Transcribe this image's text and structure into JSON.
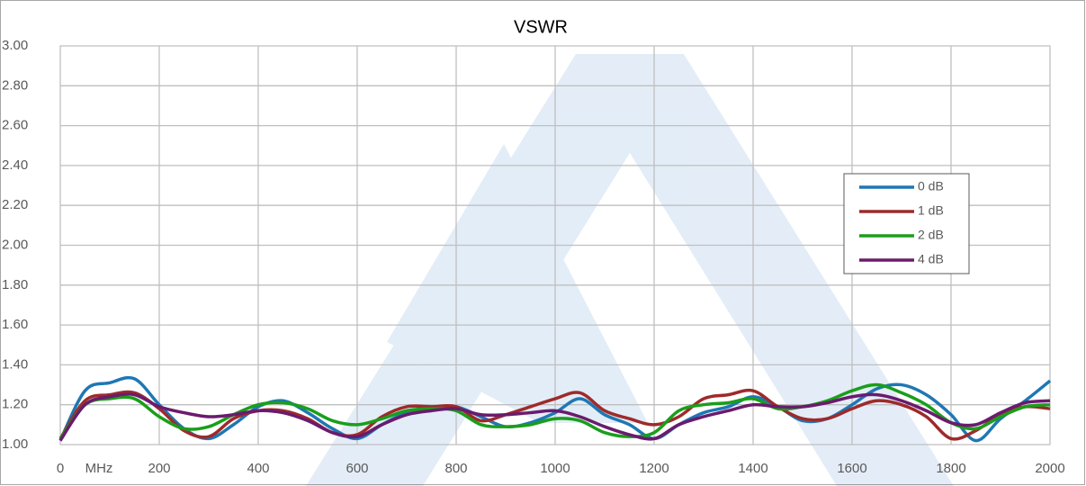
{
  "chart_data": {
    "type": "line",
    "title": "VSWR",
    "x_label": "MHz",
    "x": [
      0,
      50,
      100,
      150,
      200,
      250,
      300,
      350,
      400,
      450,
      500,
      550,
      600,
      650,
      700,
      750,
      800,
      850,
      900,
      950,
      1000,
      1050,
      1100,
      1150,
      1200,
      1250,
      1300,
      1350,
      1400,
      1450,
      1500,
      1550,
      1600,
      1650,
      1700,
      1750,
      1800,
      1850,
      1900,
      1950,
      2000
    ],
    "series": [
      {
        "name": "0 dB",
        "color": "#1f77b4",
        "values": [
          1.02,
          1.27,
          1.31,
          1.33,
          1.2,
          1.08,
          1.03,
          1.1,
          1.19,
          1.22,
          1.16,
          1.08,
          1.03,
          1.1,
          1.16,
          1.18,
          1.19,
          1.14,
          1.09,
          1.11,
          1.16,
          1.23,
          1.15,
          1.1,
          1.03,
          1.1,
          1.16,
          1.19,
          1.24,
          1.19,
          1.12,
          1.13,
          1.2,
          1.28,
          1.3,
          1.25,
          1.15,
          1.02,
          1.13,
          1.22,
          1.32
        ]
      },
      {
        "name": "1 dB",
        "color": "#9e2a2b",
        "values": [
          1.03,
          1.22,
          1.25,
          1.26,
          1.18,
          1.07,
          1.04,
          1.13,
          1.17,
          1.17,
          1.13,
          1.06,
          1.05,
          1.14,
          1.19,
          1.19,
          1.19,
          1.12,
          1.15,
          1.19,
          1.23,
          1.26,
          1.17,
          1.13,
          1.1,
          1.14,
          1.23,
          1.25,
          1.27,
          1.19,
          1.13,
          1.13,
          1.18,
          1.22,
          1.2,
          1.14,
          1.03,
          1.07,
          1.15,
          1.19,
          1.18
        ]
      },
      {
        "name": "2 dB",
        "color": "#1a9e1a",
        "values": [
          1.03,
          1.2,
          1.23,
          1.23,
          1.14,
          1.08,
          1.09,
          1.15,
          1.2,
          1.21,
          1.18,
          1.12,
          1.1,
          1.13,
          1.17,
          1.18,
          1.17,
          1.1,
          1.09,
          1.1,
          1.13,
          1.12,
          1.06,
          1.04,
          1.06,
          1.17,
          1.2,
          1.21,
          1.23,
          1.18,
          1.19,
          1.22,
          1.27,
          1.3,
          1.26,
          1.2,
          1.11,
          1.08,
          1.14,
          1.19,
          1.2
        ]
      },
      {
        "name": "4 dB",
        "color": "#6a1b6e",
        "values": [
          1.02,
          1.2,
          1.24,
          1.25,
          1.19,
          1.16,
          1.14,
          1.15,
          1.17,
          1.16,
          1.12,
          1.06,
          1.04,
          1.1,
          1.15,
          1.17,
          1.18,
          1.15,
          1.15,
          1.16,
          1.17,
          1.14,
          1.09,
          1.05,
          1.03,
          1.1,
          1.14,
          1.17,
          1.2,
          1.19,
          1.19,
          1.21,
          1.24,
          1.25,
          1.22,
          1.17,
          1.11,
          1.1,
          1.16,
          1.21,
          1.22
        ]
      }
    ],
    "xlim": [
      0,
      2000
    ],
    "xticks": [
      0,
      200,
      400,
      600,
      800,
      1000,
      1200,
      1400,
      1600,
      1800,
      2000
    ],
    "ylim": [
      1,
      3
    ],
    "yticks": [
      {
        "value": 1,
        "label": "1.00"
      },
      {
        "value": 1.2,
        "label": "1.20"
      },
      {
        "value": 1.4,
        "label": "1.40"
      },
      {
        "value": 1.6,
        "label": "1.60"
      },
      {
        "value": 1.8,
        "label": "1.80"
      },
      {
        "value": 2,
        "label": "2.00"
      },
      {
        "value": 2.2,
        "label": "2.20"
      },
      {
        "value": 2.4,
        "label": "2.40"
      },
      {
        "value": 2.6,
        "label": "2.60"
      },
      {
        "value": 2.8,
        "label": "2.80"
      },
      {
        "value": 3,
        "label": "3.00"
      }
    ],
    "grid": true,
    "legend": "right"
  }
}
